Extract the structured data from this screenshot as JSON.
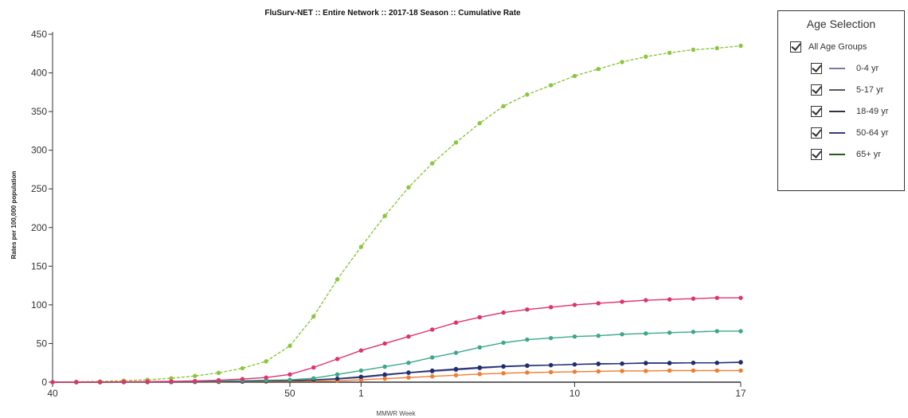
{
  "chart_data": {
    "type": "line",
    "title": "FluSurv-NET :: Entire Network :: 2017-18 Season :: Cumulative Rate",
    "xlabel": "MMWR Week",
    "ylabel": "Rates per 100,000 population",
    "ylim": [
      0,
      450
    ],
    "yticks": [
      0,
      50,
      100,
      150,
      200,
      250,
      300,
      350,
      400,
      450
    ],
    "x": [
      40,
      41,
      42,
      43,
      44,
      45,
      46,
      47,
      48,
      49,
      50,
      51,
      52,
      1,
      2,
      3,
      4,
      5,
      6,
      7,
      8,
      9,
      10,
      11,
      12,
      13,
      14,
      15,
      16,
      17
    ],
    "xtick_labels": [
      {
        "index": 0,
        "label": "40"
      },
      {
        "index": 10,
        "label": "50"
      },
      {
        "index": 13,
        "label": "1"
      },
      {
        "index": 22,
        "label": "10"
      },
      {
        "index": 29,
        "label": "17"
      }
    ],
    "grid": false,
    "legend_position": "right",
    "series": [
      {
        "name": "0-4 yr",
        "color": "#5a5a9a",
        "values": [
          0,
          0,
          0,
          0.1,
          0.2,
          0.3,
          0.5,
          0.7,
          1,
          1.5,
          2,
          3,
          4,
          6,
          9,
          12,
          14,
          16,
          18,
          20,
          21,
          22,
          23,
          24,
          24,
          25,
          25,
          25,
          25,
          26
        ]
      },
      {
        "name": "5-17 yr",
        "color": "#f07c2e",
        "values": [
          0,
          0,
          0,
          0,
          0.1,
          0.1,
          0.2,
          0.3,
          0.5,
          0.7,
          1,
          1.5,
          2,
          3,
          4.5,
          6,
          7.5,
          9,
          10.5,
          11.5,
          12.5,
          13,
          13.5,
          14,
          14.5,
          14.5,
          15,
          15,
          15,
          15
        ]
      },
      {
        "name": "18-49 yr",
        "color": "#1f2d6e",
        "values": [
          0,
          0,
          0,
          0.1,
          0.2,
          0.3,
          0.5,
          0.8,
          1,
          1.5,
          2,
          3,
          4.5,
          7,
          10,
          12.5,
          15,
          17,
          19,
          20.5,
          21.5,
          22,
          23,
          23.5,
          24,
          24.5,
          24.5,
          25,
          25,
          25.5
        ]
      },
      {
        "name": "50-64 yr",
        "color": "#3aa88a",
        "values": [
          0,
          0,
          0,
          0.2,
          0.4,
          0.7,
          1,
          1.5,
          2,
          2.5,
          3,
          5,
          10,
          15,
          20,
          25,
          32,
          38,
          45,
          51,
          55,
          57,
          59,
          60,
          62,
          63,
          64,
          65,
          66,
          66
        ]
      },
      {
        "name": "65+ yr",
        "color": "#8cc63e",
        "values": [
          0,
          0.5,
          1,
          2,
          3,
          5,
          8,
          12,
          18,
          27,
          47,
          85,
          133,
          175,
          215,
          252,
          283,
          310,
          335,
          357,
          372,
          384,
          396,
          405,
          414,
          421,
          426,
          430,
          432,
          435
        ]
      },
      {
        "name": "",
        "color": "#e0306e",
        "values": [
          0,
          0,
          0.2,
          0.4,
          0.7,
          1,
          1.5,
          2.5,
          4,
          6,
          10,
          19,
          30,
          41,
          50,
          59,
          68,
          77,
          84,
          90,
          94,
          97,
          100,
          102,
          104,
          106,
          107,
          108,
          109,
          109
        ]
      }
    ]
  },
  "legend": {
    "title": "Age Selection",
    "all_label": "All Age Groups",
    "items": [
      {
        "label": "0-4 yr",
        "color": "#7a7aaa"
      },
      {
        "label": "5-17 yr",
        "color": "#555566"
      },
      {
        "label": "18-49 yr",
        "color": "#333344"
      },
      {
        "label": "50-64 yr",
        "color": "#3a3a7a"
      },
      {
        "label": "65+ yr",
        "color": "#2a5a1a"
      }
    ]
  }
}
